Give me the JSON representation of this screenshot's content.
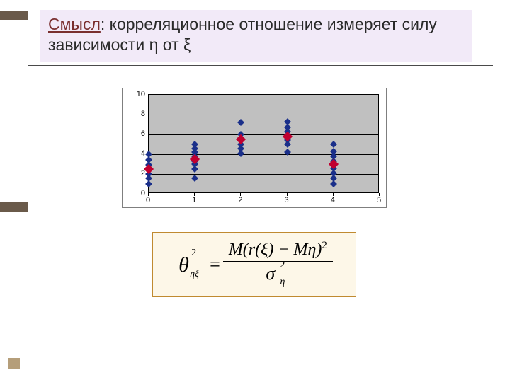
{
  "colors": {
    "slide_bg": "#ffffff",
    "title_bg": "#f2eaf8",
    "title_text": "#2a2a2a",
    "lead_text": "#7a2f2f",
    "side_bar": "#6a5a4a",
    "decor_square": "#b59e7a",
    "hr": "#4a4a4a",
    "chart_border": "#7f7f7f",
    "chart_bg": "#c0c0c0",
    "grid": "#000000",
    "series1": "#1a2f8a",
    "series2": "#c00030",
    "formula_border": "#c08a30",
    "formula_bg": "#fdf7e8"
  },
  "title": {
    "lead": "Смысл",
    "rest": ": корреляционное отношение измеряет силу зависимости η от ξ",
    "fontsize": 23
  },
  "chart": {
    "type": "scatter",
    "xlim": [
      0,
      5
    ],
    "ylim": [
      0,
      10
    ],
    "ytick_step": 2,
    "xtick_step": 1,
    "xticks": [
      "0",
      "1",
      "2",
      "3",
      "4",
      "5"
    ],
    "yticks": [
      "0",
      "2",
      "4",
      "6",
      "8",
      "10"
    ],
    "tick_fontsize": 11,
    "plot_bg": "#c0c0c0",
    "grid_color": "#000000",
    "marker_shape": "diamond",
    "series": [
      {
        "name": "blue",
        "color": "#1a2f8a",
        "size": 7,
        "points": [
          [
            0.0,
            1.0
          ],
          [
            0.0,
            1.6
          ],
          [
            0.0,
            2.0
          ],
          [
            0.0,
            2.5
          ],
          [
            0.0,
            2.9
          ],
          [
            0.0,
            3.4
          ],
          [
            0.0,
            4.0
          ],
          [
            1.0,
            1.6
          ],
          [
            1.0,
            2.5
          ],
          [
            1.0,
            3.0
          ],
          [
            1.0,
            3.3
          ],
          [
            1.0,
            3.8
          ],
          [
            1.0,
            4.2
          ],
          [
            1.0,
            4.6
          ],
          [
            1.0,
            5.0
          ],
          [
            2.0,
            4.1
          ],
          [
            2.0,
            4.6
          ],
          [
            2.0,
            5.0
          ],
          [
            2.0,
            5.4
          ],
          [
            2.0,
            6.0
          ],
          [
            2.0,
            7.2
          ],
          [
            3.0,
            4.2
          ],
          [
            3.0,
            5.0
          ],
          [
            3.0,
            5.4
          ],
          [
            3.0,
            5.8
          ],
          [
            3.0,
            6.3
          ],
          [
            3.0,
            6.7
          ],
          [
            3.0,
            7.3
          ],
          [
            4.0,
            1.0
          ],
          [
            4.0,
            1.6
          ],
          [
            4.0,
            2.1
          ],
          [
            4.0,
            2.6
          ],
          [
            4.0,
            2.9
          ],
          [
            4.0,
            3.3
          ],
          [
            4.0,
            3.8
          ],
          [
            4.0,
            4.3
          ],
          [
            4.0,
            5.0
          ]
        ]
      },
      {
        "name": "red",
        "color": "#c00030",
        "size": 10,
        "points": [
          [
            0.0,
            2.5
          ],
          [
            1.0,
            3.5
          ],
          [
            2.0,
            5.5
          ],
          [
            3.0,
            5.8
          ],
          [
            4.0,
            3.0
          ]
        ]
      }
    ]
  },
  "formula": {
    "theta": "θ",
    "theta_sup": "2",
    "theta_sub": "ηξ",
    "eq": "=",
    "numerator": "M(r(ξ) − Mη)",
    "numerator_sup": "2",
    "sigma": "σ",
    "sigma_sup": "2",
    "sigma_sub": "η",
    "fontsize": 26
  }
}
